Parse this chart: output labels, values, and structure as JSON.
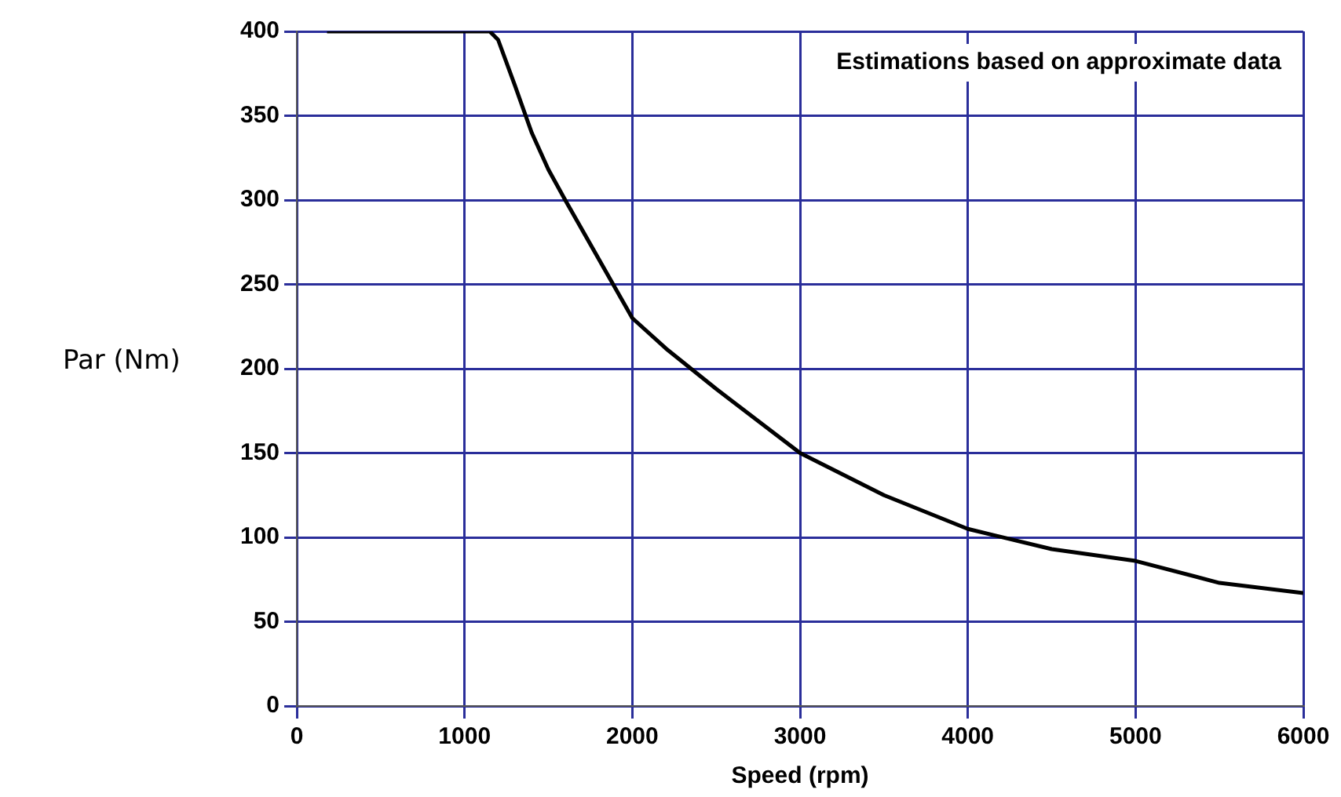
{
  "chart_data": {
    "type": "line",
    "xlabel": "Speed (rpm)",
    "ylabel": "Par (Nm)",
    "annotations": [
      "Estimations based on approximate data"
    ],
    "x": [
      180,
      1000,
      1150,
      1200,
      1300,
      1400,
      1500,
      1600,
      1800,
      2000,
      2200,
      2500,
      3000,
      3500,
      4000,
      4500,
      5000,
      5500,
      6000
    ],
    "series": [
      {
        "color": "#000000",
        "values": [
          400,
          400,
          400,
          395,
          368,
          340,
          318,
          300,
          265,
          230,
          212,
          188,
          150,
          125,
          105,
          93,
          86,
          73,
          67
        ]
      }
    ],
    "xlim": [
      0,
      6000
    ],
    "xticks": [
      0,
      1000,
      2000,
      3000,
      4000,
      5000,
      6000
    ],
    "ylim": [
      0,
      400
    ],
    "yticks": [
      0,
      50,
      100,
      150,
      200,
      250,
      300,
      350,
      400
    ],
    "grid": true,
    "legend": false,
    "marker": "none",
    "line_style": "solid"
  }
}
